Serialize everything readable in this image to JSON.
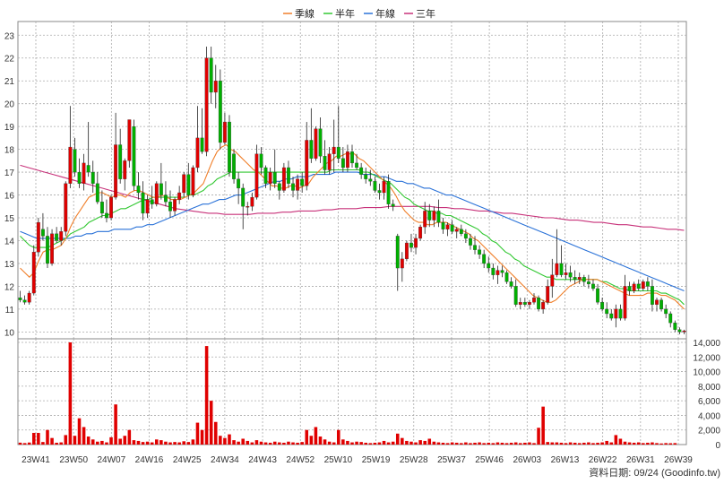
{
  "chart_data": {
    "type": "candlestick",
    "legend": [
      {
        "name": "季線",
        "color": "#f07f2a"
      },
      {
        "name": "半年",
        "color": "#32c832"
      },
      {
        "name": "年線",
        "color": "#2a72d8"
      },
      {
        "name": "三年",
        "color": "#c8327a"
      }
    ],
    "colors": {
      "up": "#e00000",
      "down": "#00b000",
      "volume": "#e00000",
      "grid": "#aaaaaa"
    },
    "price_axis": {
      "ylim": [
        10,
        23
      ],
      "ticks": [
        10,
        11,
        12,
        13,
        14,
        15,
        16,
        17,
        18,
        19,
        20,
        21,
        22,
        23
      ]
    },
    "volume_axis": {
      "ylim": [
        0,
        14000
      ],
      "ticks": [
        0,
        2000,
        4000,
        6000,
        8000,
        10000,
        12000,
        14000
      ],
      "tick_labels": [
        "0",
        "2,000",
        "4,000",
        "6,000",
        "8,000",
        "10,000",
        "12,000",
        "14,000"
      ]
    },
    "x_labels": [
      "23W41",
      "23W50",
      "24W07",
      "24W16",
      "24W25",
      "24W34",
      "24W43",
      "24W52",
      "25W10",
      "25W19",
      "25W28",
      "25W37",
      "25W46",
      "26W03",
      "26W13",
      "26W22",
      "26W31",
      "26W39"
    ],
    "candles": [
      [
        11.5,
        11.8,
        11.3,
        11.4
      ],
      [
        11.4,
        11.6,
        11.2,
        11.3
      ],
      [
        11.3,
        11.8,
        11.2,
        11.7
      ],
      [
        11.7,
        13.8,
        11.6,
        13.5
      ],
      [
        13.5,
        15.0,
        13.3,
        14.8
      ],
      [
        14.5,
        15.2,
        14.0,
        14.2
      ],
      [
        14.2,
        14.6,
        12.8,
        13.0
      ],
      [
        13.0,
        14.5,
        12.9,
        14.3
      ],
      [
        14.3,
        14.6,
        13.9,
        14.0
      ],
      [
        14.0,
        14.6,
        13.8,
        14.4
      ],
      [
        14.4,
        16.6,
        14.2,
        16.5
      ],
      [
        16.5,
        19.9,
        16.3,
        18.1
      ],
      [
        18.0,
        18.5,
        16.8,
        17.0
      ],
      [
        17.0,
        17.6,
        16.3,
        16.5
      ],
      [
        16.5,
        17.8,
        16.2,
        17.4
      ],
      [
        17.3,
        19.2,
        16.8,
        17.0
      ],
      [
        17.0,
        17.5,
        16.1,
        16.5
      ],
      [
        16.5,
        17.0,
        15.6,
        15.7
      ],
      [
        15.7,
        16.2,
        15.0,
        15.2
      ],
      [
        15.2,
        15.8,
        14.8,
        15.0
      ],
      [
        15.0,
        16.0,
        14.9,
        15.9
      ],
      [
        15.9,
        19.6,
        15.8,
        18.2
      ],
      [
        18.2,
        18.9,
        16.5,
        16.7
      ],
      [
        16.7,
        17.6,
        16.2,
        17.5
      ],
      [
        17.5,
        19.3,
        17.2,
        19.3
      ],
      [
        19.0,
        19.3,
        16.2,
        16.4
      ],
      [
        16.4,
        17.0,
        15.8,
        16.1
      ],
      [
        16.1,
        16.6,
        14.9,
        15.2
      ],
      [
        15.2,
        16.0,
        15.0,
        15.8
      ],
      [
        15.8,
        16.4,
        15.4,
        15.6
      ],
      [
        15.6,
        16.6,
        15.5,
        16.5
      ],
      [
        16.5,
        17.4,
        15.8,
        16.0
      ],
      [
        16.0,
        16.6,
        15.5,
        15.7
      ],
      [
        15.7,
        16.2,
        15.0,
        15.3
      ],
      [
        15.3,
        15.9,
        15.1,
        15.8
      ],
      [
        15.8,
        16.4,
        15.6,
        16.1
      ],
      [
        16.1,
        17.0,
        15.9,
        16.9
      ],
      [
        16.9,
        17.4,
        15.8,
        16.0
      ],
      [
        16.0,
        17.3,
        15.9,
        17.2
      ],
      [
        17.2,
        19.9,
        17.0,
        18.5
      ],
      [
        18.5,
        19.8,
        17.8,
        17.9
      ],
      [
        17.9,
        22.5,
        17.7,
        22.0
      ],
      [
        22.0,
        22.5,
        20.0,
        20.5
      ],
      [
        20.5,
        21.7,
        19.8,
        21.0
      ],
      [
        21.0,
        21.5,
        18.0,
        18.3
      ],
      [
        18.3,
        19.6,
        18.2,
        19.2
      ],
      [
        19.2,
        19.5,
        16.8,
        17.0
      ],
      [
        17.8,
        18.0,
        16.5,
        16.7
      ],
      [
        16.7,
        17.0,
        15.6,
        16.3
      ],
      [
        16.3,
        16.5,
        14.5,
        15.5
      ],
      [
        15.5,
        15.7,
        15.1,
        15.5
      ],
      [
        15.5,
        16.1,
        15.3,
        15.9
      ],
      [
        15.9,
        18.2,
        15.8,
        17.8
      ],
      [
        17.8,
        18.1,
        16.9,
        17.2
      ],
      [
        17.2,
        17.3,
        16.3,
        16.5
      ],
      [
        16.5,
        17.2,
        16.2,
        17.0
      ],
      [
        17.0,
        18.0,
        16.3,
        16.5
      ],
      [
        16.5,
        16.6,
        15.8,
        16.2
      ],
      [
        16.2,
        17.4,
        16.1,
        17.2
      ],
      [
        17.2,
        17.5,
        16.3,
        16.5
      ],
      [
        16.5,
        16.8,
        15.9,
        16.2
      ],
      [
        16.2,
        16.9,
        15.8,
        16.7
      ],
      [
        16.7,
        17.0,
        16.1,
        16.4
      ],
      [
        16.4,
        19.2,
        16.2,
        18.4
      ],
      [
        18.4,
        19.8,
        17.4,
        17.6
      ],
      [
        17.6,
        19.0,
        17.5,
        18.9
      ],
      [
        18.9,
        19.4,
        17.4,
        17.7
      ],
      [
        17.7,
        18.4,
        16.9,
        17.1
      ],
      [
        17.1,
        18.1,
        16.9,
        17.8
      ],
      [
        17.8,
        19.3,
        17.0,
        18.1
      ],
      [
        18.1,
        19.9,
        17.4,
        17.6
      ],
      [
        17.6,
        18.1,
        17.0,
        17.2
      ],
      [
        17.2,
        18.2,
        17.0,
        17.9
      ],
      [
        17.9,
        18.2,
        17.2,
        17.4
      ],
      [
        17.4,
        17.8,
        17.1,
        17.2
      ],
      [
        17.2,
        17.4,
        16.7,
        16.9
      ],
      [
        16.9,
        17.2,
        16.5,
        16.7
      ],
      [
        16.7,
        17.1,
        16.4,
        16.6
      ],
      [
        16.6,
        16.8,
        16.1,
        16.2
      ],
      [
        16.2,
        16.5,
        15.8,
        16.1
      ],
      [
        16.1,
        16.8,
        15.8,
        16.6
      ],
      [
        16.6,
        16.9,
        15.4,
        15.6
      ],
      [
        15.6,
        15.8,
        15.3,
        15.5
      ],
      [
        14.2,
        14.3,
        11.8,
        12.8
      ],
      [
        12.8,
        13.5,
        12.2,
        13.2
      ],
      [
        13.2,
        14.0,
        13.1,
        13.9
      ],
      [
        13.9,
        14.3,
        13.5,
        13.7
      ],
      [
        13.7,
        14.3,
        13.4,
        14.1
      ],
      [
        14.1,
        14.7,
        14.0,
        14.6
      ],
      [
        14.6,
        15.7,
        14.3,
        15.3
      ],
      [
        15.3,
        15.6,
        14.6,
        14.9
      ],
      [
        14.9,
        15.5,
        14.6,
        15.3
      ],
      [
        15.3,
        15.8,
        14.6,
        14.8
      ],
      [
        14.8,
        15.0,
        14.3,
        14.5
      ],
      [
        14.5,
        14.8,
        14.2,
        14.7
      ],
      [
        14.7,
        14.9,
        14.3,
        14.4
      ],
      [
        14.4,
        14.6,
        14.1,
        14.5
      ],
      [
        14.5,
        14.7,
        14.2,
        14.3
      ],
      [
        14.3,
        14.5,
        13.9,
        14.1
      ],
      [
        14.1,
        14.3,
        13.6,
        13.8
      ],
      [
        13.8,
        14.2,
        13.4,
        13.6
      ],
      [
        13.6,
        13.8,
        13.2,
        13.4
      ],
      [
        13.4,
        13.6,
        12.8,
        13.0
      ],
      [
        13.0,
        13.3,
        12.6,
        12.8
      ],
      [
        12.8,
        13.0,
        12.3,
        12.5
      ],
      [
        12.5,
        12.9,
        12.1,
        12.7
      ],
      [
        12.7,
        12.9,
        12.4,
        12.6
      ],
      [
        12.6,
        12.7,
        12.1,
        12.2
      ],
      [
        12.2,
        12.4,
        11.9,
        12.0
      ],
      [
        12.0,
        12.3,
        11.1,
        11.2
      ],
      [
        11.2,
        11.5,
        11.0,
        11.3
      ],
      [
        11.3,
        11.5,
        11.1,
        11.2
      ],
      [
        11.2,
        11.4,
        11.0,
        11.3
      ],
      [
        11.3,
        11.7,
        11.2,
        11.5
      ],
      [
        11.5,
        11.6,
        10.9,
        11.0
      ],
      [
        11.0,
        11.4,
        10.8,
        11.3
      ],
      [
        11.3,
        12.3,
        11.2,
        12.0
      ],
      [
        12.0,
        13.2,
        11.5,
        12.5
      ],
      [
        12.5,
        14.5,
        12.4,
        13.0
      ],
      [
        13.0,
        13.8,
        12.4,
        12.5
      ],
      [
        12.5,
        13.0,
        12.3,
        12.6
      ],
      [
        12.6,
        12.9,
        12.2,
        12.4
      ],
      [
        12.4,
        12.7,
        12.1,
        12.3
      ],
      [
        12.3,
        12.6,
        12.1,
        12.4
      ],
      [
        12.4,
        12.5,
        12.0,
        12.2
      ],
      [
        12.2,
        12.5,
        11.9,
        12.1
      ],
      [
        12.1,
        12.3,
        11.8,
        11.9
      ],
      [
        11.9,
        12.1,
        11.2,
        11.3
      ],
      [
        11.3,
        11.5,
        10.9,
        11.0
      ],
      [
        11.0,
        11.3,
        10.6,
        10.8
      ],
      [
        10.8,
        11.0,
        10.5,
        10.6
      ],
      [
        10.6,
        11.2,
        10.2,
        11.0
      ],
      [
        11.0,
        11.2,
        10.5,
        10.6
      ],
      [
        10.6,
        12.5,
        10.5,
        12.0
      ],
      [
        12.0,
        12.2,
        11.6,
        11.8
      ],
      [
        11.8,
        12.2,
        11.7,
        12.1
      ],
      [
        12.1,
        12.3,
        11.8,
        11.9
      ],
      [
        11.9,
        12.3,
        11.8,
        12.2
      ],
      [
        12.2,
        12.4,
        11.8,
        12.0
      ],
      [
        12.0,
        12.3,
        10.9,
        11.2
      ],
      [
        11.2,
        11.5,
        10.9,
        11.4
      ],
      [
        11.4,
        11.5,
        10.9,
        11.0
      ],
      [
        11.0,
        11.2,
        10.6,
        10.8
      ],
      [
        10.8,
        10.9,
        10.2,
        10.4
      ],
      [
        10.4,
        10.5,
        10.0,
        10.1
      ],
      [
        10.1,
        10.2,
        9.9,
        10.0
      ],
      [
        10.0,
        10.1,
        9.9,
        10.05
      ]
    ],
    "volumes": [
      260,
      200,
      280,
      1600,
      1600,
      350,
      2000,
      900,
      250,
      300,
      1300,
      14000,
      1200,
      3600,
      2400,
      1100,
      700,
      400,
      500,
      300,
      1000,
      5500,
      800,
      1200,
      2000,
      600,
      500,
      350,
      400,
      300,
      700,
      600,
      400,
      300,
      350,
      300,
      450,
      350,
      700,
      3000,
      2000,
      13500,
      6000,
      3100,
      1200,
      900,
      1400,
      600,
      400,
      800,
      500,
      300,
      600,
      400,
      300,
      250,
      400,
      300,
      250,
      400,
      300,
      250,
      350,
      2000,
      1200,
      2400,
      1100,
      700,
      400,
      300,
      2000,
      700,
      500,
      300,
      400,
      350,
      250,
      200,
      250,
      300,
      500,
      300,
      400,
      1500,
      900,
      500,
      400,
      300,
      600,
      500,
      800,
      400,
      300,
      250,
      200,
      300,
      250,
      200,
      300,
      200,
      250,
      300,
      200,
      250,
      200,
      300,
      250,
      200,
      250,
      300,
      200,
      250,
      300,
      200,
      2300,
      5200,
      350,
      300,
      300,
      250,
      200,
      300,
      250,
      200,
      250,
      300,
      200,
      250,
      300,
      500,
      300,
      1300,
      800,
      400,
      300,
      250,
      300,
      200,
      250,
      300,
      200,
      150,
      200,
      180,
      200
    ],
    "ma_quarter": [
      12.8,
      12.6,
      12.4,
      12.6,
      13.1,
      13.5,
      13.6,
      13.6,
      13.7,
      13.8,
      14.1,
      14.6,
      15.0,
      15.3,
      15.6,
      15.9,
      16.0,
      16.1,
      16.1,
      16.0,
      15.9,
      16.0,
      16.0,
      15.9,
      16.1,
      16.2,
      16.2,
      16.1,
      16.0,
      15.9,
      15.9,
      16.0,
      15.9,
      15.8,
      15.8,
      15.8,
      15.9,
      16.0,
      16.1,
      16.3,
      16.5,
      17.0,
      17.5,
      17.9,
      18.1,
      18.2,
      18.0,
      17.9,
      17.7,
      17.5,
      17.3,
      17.1,
      17.0,
      16.8,
      16.6,
      16.4,
      16.4,
      16.3,
      16.3,
      16.4,
      16.4,
      16.3,
      16.4,
      16.5,
      16.8,
      17.0,
      17.2,
      17.4,
      17.5,
      17.7,
      17.7,
      17.8,
      17.8,
      17.8,
      17.6,
      17.5,
      17.3,
      17.1,
      16.9,
      16.7,
      16.5,
      16.3,
      16.0,
      15.6,
      15.3,
      15.1,
      14.9,
      14.8,
      14.8,
      14.7,
      14.7,
      14.8,
      14.8,
      14.8,
      14.7,
      14.6,
      14.5,
      14.4,
      14.3,
      14.1,
      14.0,
      13.8,
      13.6,
      13.4,
      13.2,
      13.0,
      12.8,
      12.6,
      12.4,
      12.2,
      12.0,
      11.8,
      11.6,
      11.5,
      11.4,
      11.3,
      11.3,
      11.4,
      11.6,
      11.8,
      12.0,
      12.1,
      12.2,
      12.3,
      12.3,
      12.3,
      12.3,
      12.2,
      12.1,
      12.0,
      11.9,
      11.8,
      11.7,
      11.6,
      11.6,
      11.6,
      11.6,
      11.7,
      11.7,
      11.7,
      11.6,
      11.6,
      11.5,
      11.4,
      11.2,
      11.0
    ],
    "ma_half": [
      14.2,
      14.0,
      13.8,
      13.7,
      13.7,
      13.7,
      13.7,
      13.8,
      13.9,
      14.0,
      14.1,
      14.3,
      14.4,
      14.5,
      14.6,
      14.8,
      14.9,
      15.0,
      15.1,
      15.1,
      15.2,
      15.3,
      15.4,
      15.4,
      15.5,
      15.6,
      15.7,
      15.8,
      15.8,
      15.9,
      15.9,
      15.9,
      15.9,
      15.9,
      15.9,
      15.9,
      15.9,
      16.0,
      16.0,
      16.1,
      16.2,
      16.4,
      16.5,
      16.7,
      16.8,
      16.9,
      17.0,
      17.0,
      17.0,
      17.0,
      17.0,
      17.0,
      17.0,
      17.0,
      17.0,
      17.0,
      17.0,
      17.0,
      17.0,
      17.0,
      17.0,
      17.0,
      17.0,
      17.0,
      17.0,
      17.0,
      17.0,
      17.0,
      17.1,
      17.1,
      17.1,
      17.1,
      17.1,
      17.1,
      17.1,
      17.0,
      17.0,
      16.9,
      16.8,
      16.7,
      16.6,
      16.5,
      16.3,
      16.1,
      15.9,
      15.8,
      15.6,
      15.5,
      15.4,
      15.3,
      15.3,
      15.2,
      15.2,
      15.1,
      15.1,
      15.0,
      14.9,
      14.8,
      14.7,
      14.6,
      14.5,
      14.3,
      14.2,
      14.0,
      13.9,
      13.7,
      13.5,
      13.4,
      13.2,
      13.1,
      12.9,
      12.8,
      12.7,
      12.6,
      12.5,
      12.4,
      12.4,
      12.3,
      12.3,
      12.3,
      12.3,
      12.3,
      12.3,
      12.3,
      12.3,
      12.3,
      12.3,
      12.2,
      12.2,
      12.1,
      12.0,
      11.9,
      11.9,
      11.8,
      11.8,
      11.8,
      11.8,
      11.8,
      11.8,
      11.8,
      11.7,
      11.7,
      11.6,
      11.5,
      11.4,
      11.2
    ],
    "ma_year": [
      14.4,
      14.3,
      14.2,
      14.1,
      14.1,
      14.1,
      14.1,
      14.1,
      14.1,
      14.1,
      14.2,
      14.2,
      14.3,
      14.3,
      14.4,
      14.4,
      14.4,
      14.5,
      14.5,
      14.5,
      14.5,
      14.6,
      14.6,
      14.7,
      14.7,
      14.8,
      14.9,
      15.0,
      15.1,
      15.2,
      15.3,
      15.4,
      15.5,
      15.6,
      15.6,
      15.7,
      15.8,
      15.8,
      15.9,
      16.0,
      16.0,
      16.1,
      16.2,
      16.3,
      16.4,
      16.5,
      16.6,
      16.6,
      16.7,
      16.7,
      16.8,
      16.8,
      16.8,
      16.9,
      16.9,
      16.9,
      16.9,
      17.0,
      17.0,
      17.0,
      17.0,
      17.0,
      16.9,
      16.9,
      16.9,
      16.8,
      16.8,
      16.7,
      16.6,
      16.6,
      16.5,
      16.5,
      16.4,
      16.3,
      16.3,
      16.2,
      16.1,
      16.0,
      16.0,
      15.9,
      15.8,
      15.7,
      15.6,
      15.5,
      15.4,
      15.3,
      15.2,
      15.1,
      15.0,
      14.9,
      14.8,
      14.7,
      14.6,
      14.5,
      14.4,
      14.3,
      14.2,
      14.1,
      14.0,
      13.9,
      13.8,
      13.7,
      13.6,
      13.5,
      13.4,
      13.3,
      13.2,
      13.1,
      13.0,
      12.9,
      12.8,
      12.7,
      12.6,
      12.5,
      12.4,
      12.3,
      12.2,
      12.1,
      12.0,
      11.9,
      11.8
    ],
    "ma_3year": [
      17.3,
      17.2,
      17.1,
      17.0,
      16.9,
      16.8,
      16.7,
      16.6,
      16.5,
      16.4,
      16.3,
      16.2,
      16.1,
      16.0,
      15.9,
      15.8,
      15.7,
      15.6,
      15.5,
      15.4,
      15.35,
      15.3,
      15.25,
      15.2,
      15.2,
      15.15,
      15.15,
      15.15,
      15.15,
      15.2,
      15.2,
      15.2,
      15.25,
      15.25,
      15.3,
      15.3,
      15.3,
      15.35,
      15.35,
      15.4,
      15.4,
      15.4,
      15.45,
      15.45,
      15.45,
      15.5,
      15.5,
      15.5,
      15.5,
      15.5,
      15.5,
      15.45,
      15.45,
      15.4,
      15.4,
      15.35,
      15.3,
      15.3,
      15.25,
      15.2,
      15.2,
      15.15,
      15.1,
      15.05,
      15.0,
      15.0,
      14.95,
      14.9,
      14.9,
      14.85,
      14.8,
      14.8,
      14.75,
      14.7,
      14.7,
      14.65,
      14.6,
      14.6,
      14.55,
      14.5,
      14.5,
      14.45
    ]
  },
  "credit": "資料日期: 09/24  (Goodinfo.tw)"
}
